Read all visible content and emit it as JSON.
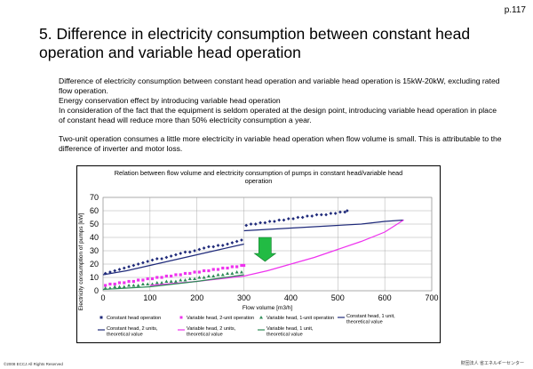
{
  "page": {
    "number": "p.117"
  },
  "title": "5. Difference in electricity consumption between constant head operation and variable head operation",
  "body": {
    "line1": "Difference of electricity consumption between constant head operation and variable head operation is 15kW-20kW, excluding rated flow operation.",
    "line2": "Energy conservation effect by introducing variable head operation",
    "line3": "In consideration of the fact that the equipment is seldom operated at the design point, introducing variable head operation in place of constant head will reduce more than 50% electricity consumption a year.",
    "line4": "Two-unit operation consumes a little more electricity in variable head operation when flow volume is small. This is attributable to the difference of inverter and motor loss."
  },
  "footer": {
    "copyright": "©2008  ECCJ All Rights Reserved",
    "org": "財団法人 省エネルギーセンター"
  },
  "chart_data": {
    "type": "scatter",
    "title": "Relation between flow volume and electricity consumption of pumps in constant head/variable head operation",
    "xlabel": "Flow volume [m3/h]",
    "ylabel": "Electricity consumption of pumps [kW]",
    "xlim": [
      0,
      700
    ],
    "ylim": [
      0,
      70
    ],
    "xticks": [
      0,
      100,
      200,
      300,
      400,
      500,
      600,
      700
    ],
    "yticks": [
      0,
      10,
      20,
      30,
      40,
      50,
      60,
      70
    ],
    "grid": true,
    "legend_position": "bottom",
    "colors": {
      "constant": "#1f2a7a",
      "var2": "#ee33ee",
      "var1": "#2e8b57",
      "arrow": "#22bb44"
    },
    "series": [
      {
        "name": "Constant head operation",
        "kind": "points",
        "color": "#1f2a7a",
        "x": [
          5,
          15,
          25,
          35,
          45,
          55,
          65,
          75,
          85,
          95,
          105,
          115,
          125,
          135,
          145,
          155,
          165,
          175,
          185,
          195,
          205,
          215,
          225,
          235,
          245,
          255,
          265,
          275,
          285,
          295,
          305,
          315,
          325,
          335,
          345,
          355,
          365,
          375,
          385,
          395,
          405,
          415,
          425,
          435,
          445,
          455,
          465,
          475,
          485,
          495,
          505,
          515,
          520
        ],
        "y": [
          13,
          14,
          15,
          16,
          17,
          18,
          19,
          20,
          21,
          22,
          23,
          24,
          24,
          25,
          26,
          27,
          28,
          29,
          29,
          30,
          31,
          32,
          33,
          33,
          34,
          34,
          35,
          36,
          37,
          38,
          49,
          50,
          50,
          51,
          51,
          52,
          52,
          53,
          53,
          54,
          54,
          55,
          55,
          56,
          56,
          57,
          57,
          57,
          58,
          58,
          59,
          59,
          60
        ]
      },
      {
        "name": "Variable head, 2-unit operation",
        "kind": "points",
        "color": "#ee33ee",
        "x": [
          5,
          15,
          25,
          35,
          45,
          55,
          65,
          75,
          85,
          95,
          105,
          115,
          125,
          135,
          145,
          155,
          165,
          175,
          185,
          195,
          205,
          215,
          225,
          235,
          245,
          255,
          265,
          275,
          285,
          295,
          300
        ],
        "y": [
          4,
          5,
          5,
          6,
          6,
          7,
          7,
          8,
          8,
          9,
          9,
          10,
          10,
          11,
          11,
          12,
          12,
          13,
          13,
          14,
          14,
          15,
          15,
          16,
          16,
          17,
          17,
          18,
          18,
          19,
          19
        ]
      },
      {
        "name": "Variable head, 1-unit operation",
        "kind": "points",
        "color": "#2e8b57",
        "x": [
          5,
          15,
          25,
          35,
          45,
          55,
          65,
          75,
          85,
          95,
          105,
          115,
          125,
          135,
          145,
          155,
          165,
          175,
          185,
          195,
          205,
          215,
          225,
          235,
          245,
          255,
          265,
          275,
          285,
          295
        ],
        "y": [
          2,
          2,
          3,
          3,
          3,
          4,
          4,
          4,
          5,
          5,
          5,
          6,
          6,
          7,
          7,
          7,
          8,
          8,
          9,
          9,
          10,
          10,
          11,
          11,
          12,
          12,
          13,
          13,
          14,
          14
        ]
      },
      {
        "name": "Constant head, 1 unit, theoretical value",
        "kind": "line",
        "color": "#1f2a7a",
        "x": [
          0,
          50,
          100,
          150,
          200,
          250,
          300
        ],
        "y": [
          12,
          15,
          19,
          23,
          27,
          31,
          35
        ]
      },
      {
        "name": "Constant head, 2 units, theoretical value",
        "kind": "line",
        "color": "#1f2a7a",
        "x": [
          300,
          350,
          400,
          450,
          500,
          550,
          600,
          640
        ],
        "y": [
          45,
          46,
          47,
          48,
          49,
          50,
          52,
          53
        ]
      },
      {
        "name": "Variable head, 2 units, theoretical value",
        "kind": "line",
        "color": "#ee33ee",
        "x": [
          100,
          200,
          300,
          350,
          400,
          450,
          500,
          550,
          600,
          640
        ],
        "y": [
          4,
          7,
          11,
          15,
          20,
          25,
          31,
          37,
          44,
          53
        ]
      },
      {
        "name": "Variable head, 1 unit, theoretical value",
        "kind": "line",
        "color": "#2e8b57",
        "x": [
          0,
          100,
          200,
          300
        ],
        "y": [
          1,
          3,
          7,
          12
        ]
      }
    ],
    "arrow": {
      "x": 345,
      "y_from": 40,
      "y_to": 22
    }
  }
}
